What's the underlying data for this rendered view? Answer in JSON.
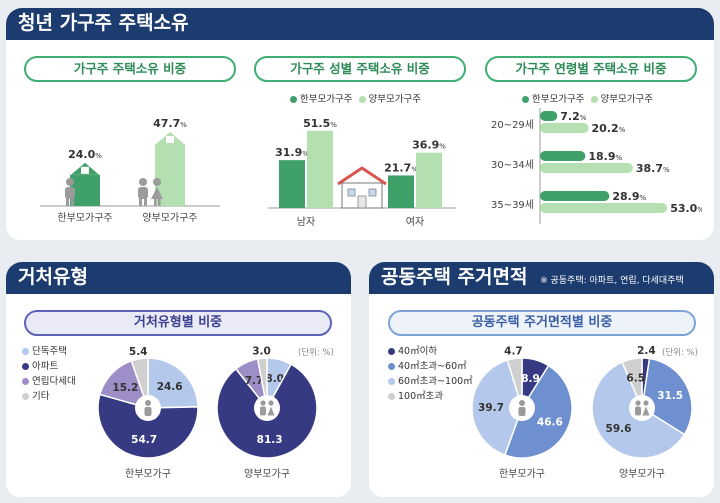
{
  "sections": {
    "ownership_title": "청년 가구주 주택소유",
    "housing_type_title": "거처유형",
    "area_title": "공동주택 주거면적",
    "area_note": "※ 공동주택: 아파트, 연립, 다세대주택"
  },
  "colors": {
    "green_dark": "#3fa06a",
    "green_light": "#b4dfb0",
    "navy": "#363a83",
    "blue": "#6e8fd0",
    "light_blue": "#b3c8ea",
    "purple": "#9d8ec8",
    "grey": "#cfcfcf"
  },
  "chart_data": [
    {
      "type": "bar",
      "title": "가구주 주택소유 비중",
      "categories": [
        "한부모가구주",
        "양부모가구주"
      ],
      "values": [
        24.0,
        47.7
      ],
      "value_labels": [
        "24.0",
        "47.7"
      ],
      "unit": "%"
    },
    {
      "type": "bar",
      "title": "가구주 성별 주택소유 비중",
      "categories": [
        "남자",
        "여자"
      ],
      "series": [
        {
          "name": "한부모가구주",
          "values": [
            31.9,
            21.7
          ],
          "value_labels": [
            "31.9",
            "21.7"
          ]
        },
        {
          "name": "양부모가구주",
          "values": [
            51.5,
            36.9
          ],
          "value_labels": [
            "51.5",
            "36.9"
          ]
        }
      ],
      "unit": "%"
    },
    {
      "type": "bar",
      "orientation": "horizontal",
      "title": "가구주 연령별 주택소유 비중",
      "categories": [
        "20~29세",
        "30~34세",
        "35~39세"
      ],
      "series": [
        {
          "name": "한부모가구주",
          "values": [
            7.2,
            18.9,
            28.9
          ],
          "value_labels": [
            "7.2",
            "18.9",
            "28.9"
          ]
        },
        {
          "name": "양부모가구주",
          "values": [
            20.2,
            38.7,
            53.0
          ],
          "value_labels": [
            "20.2",
            "38.7",
            "53.0"
          ]
        }
      ],
      "unit": "%"
    },
    {
      "type": "pie",
      "title": "거처유형별 비중",
      "unit_note": "(단위: %)",
      "legend": [
        "단독주택",
        "아파트",
        "연립다세대",
        "기타"
      ],
      "pies": [
        {
          "name": "한부모가구",
          "values": [
            24.6,
            54.7,
            15.2,
            5.4
          ],
          "value_labels": [
            "24.6",
            "54.7",
            "15.2",
            "5.4"
          ]
        },
        {
          "name": "양부모가구",
          "values": [
            8.0,
            81.3,
            7.7,
            3.0
          ],
          "value_labels": [
            "8.0",
            "81.3",
            "7.7",
            "3.0"
          ]
        }
      ]
    },
    {
      "type": "pie",
      "title": "공동주택 주거면적별 비중",
      "unit_note": "(단위: %)",
      "legend": [
        "40㎡이하",
        "40㎡초과~60㎡",
        "60㎡초과~100㎡",
        "100㎡초과"
      ],
      "pies": [
        {
          "name": "한부모가구",
          "values": [
            8.9,
            46.6,
            39.7,
            4.7
          ],
          "value_labels": [
            "8.9",
            "46.6",
            "39.7",
            "4.7"
          ]
        },
        {
          "name": "양부모가구",
          "values": [
            2.4,
            31.5,
            59.6,
            6.5
          ],
          "value_labels": [
            "2.4",
            "31.5",
            "59.6",
            "6.5"
          ]
        }
      ]
    }
  ]
}
